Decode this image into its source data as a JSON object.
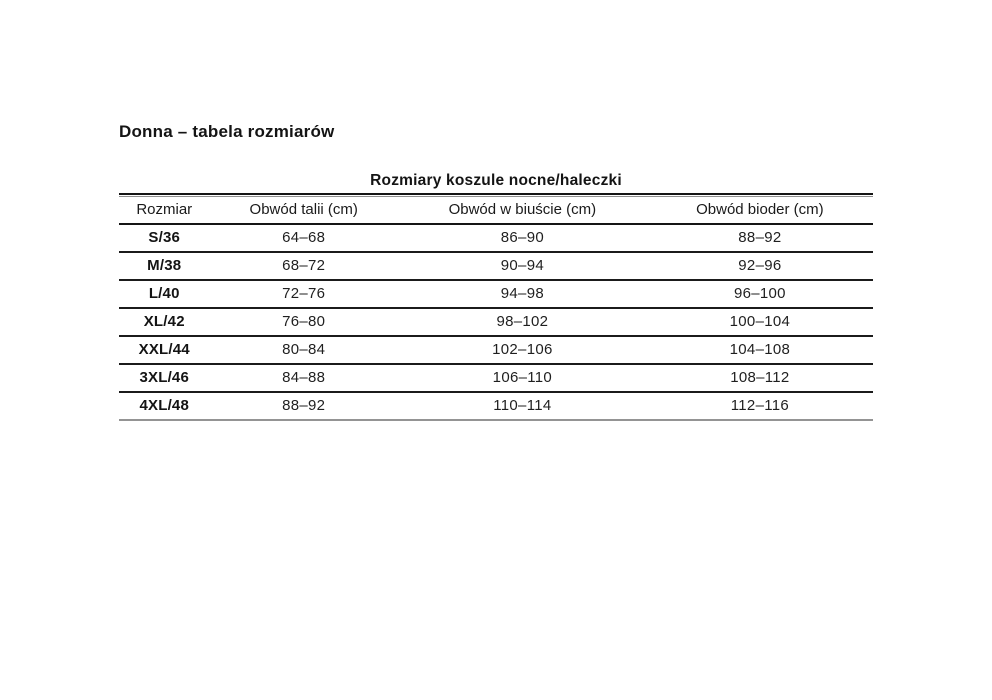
{
  "page": {
    "title": "Donna – tabela rozmiarów"
  },
  "table": {
    "caption": "Rozmiary koszule nocne/haleczki",
    "columns": [
      "Rozmiar",
      "Obwód talii (cm)",
      "Obwód w biuście (cm)",
      "Obwód bioder (cm)"
    ],
    "rows": [
      {
        "size": "S/36",
        "waist": "64–68",
        "bust": "86–90",
        "hips": "88–92"
      },
      {
        "size": "M/38",
        "waist": "68–72",
        "bust": "90–94",
        "hips": "92–96"
      },
      {
        "size": "L/40",
        "waist": "72–76",
        "bust": "94–98",
        "hips": "96–100"
      },
      {
        "size": "XL/42",
        "waist": "76–80",
        "bust": "98–102",
        "hips": "100–104"
      },
      {
        "size": "XXL/44",
        "waist": "80–84",
        "bust": "102–106",
        "hips": "104–108"
      },
      {
        "size": "3XL/46",
        "waist": "84–88",
        "bust": "106–110",
        "hips": "108–112"
      },
      {
        "size": "4XL/48",
        "waist": "88–92",
        "bust": "110–114",
        "hips": "112–116"
      }
    ]
  }
}
